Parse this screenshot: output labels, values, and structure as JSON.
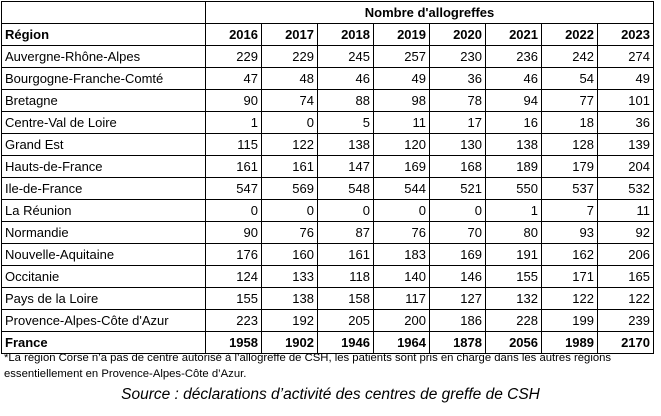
{
  "table": {
    "group_header": "Nombre d'allogreffes",
    "region_label": "Région",
    "years": [
      "2016",
      "2017",
      "2018",
      "2019",
      "2020",
      "2021",
      "2022",
      "2023"
    ],
    "rows": [
      {
        "name": "Auvergne-Rhône-Alpes",
        "values": [
          "229",
          "229",
          "245",
          "257",
          "230",
          "236",
          "242",
          "274"
        ]
      },
      {
        "name": "Bourgogne-Franche-Comté",
        "values": [
          "47",
          "48",
          "46",
          "49",
          "36",
          "46",
          "54",
          "49"
        ]
      },
      {
        "name": "Bretagne",
        "values": [
          "90",
          "74",
          "88",
          "98",
          "78",
          "94",
          "77",
          "101"
        ]
      },
      {
        "name": "Centre-Val de Loire",
        "values": [
          "1",
          "0",
          "5",
          "11",
          "17",
          "16",
          "18",
          "36"
        ]
      },
      {
        "name": "Grand Est",
        "values": [
          "115",
          "122",
          "138",
          "120",
          "130",
          "138",
          "128",
          "139"
        ]
      },
      {
        "name": "Hauts-de-France",
        "values": [
          "161",
          "161",
          "147",
          "169",
          "168",
          "189",
          "179",
          "204"
        ]
      },
      {
        "name": "Ile-de-France",
        "values": [
          "547",
          "569",
          "548",
          "544",
          "521",
          "550",
          "537",
          "532"
        ]
      },
      {
        "name": "La Réunion",
        "values": [
          "0",
          "0",
          "0",
          "0",
          "0",
          "1",
          "7",
          "11"
        ]
      },
      {
        "name": "Normandie",
        "values": [
          "90",
          "76",
          "87",
          "76",
          "70",
          "80",
          "93",
          "92"
        ]
      },
      {
        "name": "Nouvelle-Aquitaine",
        "values": [
          "176",
          "160",
          "161",
          "183",
          "169",
          "191",
          "162",
          "206"
        ]
      },
      {
        "name": "Occitanie",
        "values": [
          "124",
          "133",
          "118",
          "140",
          "146",
          "155",
          "171",
          "165"
        ]
      },
      {
        "name": "Pays de la Loire",
        "values": [
          "155",
          "138",
          "158",
          "117",
          "127",
          "132",
          "122",
          "122"
        ]
      },
      {
        "name": "Provence-Alpes-Côte d'Azur",
        "values": [
          "223",
          "192",
          "205",
          "200",
          "186",
          "228",
          "199",
          "239"
        ]
      }
    ],
    "total": {
      "name": "France",
      "values": [
        "1958",
        "1902",
        "1946",
        "1964",
        "1878",
        "2056",
        "1989",
        "2170"
      ]
    }
  },
  "footnote": "*La région Corse n’a pas de centre autorisé à l’allogreffe de CSH, les patients sont pris en charge dans les autres régions essentiellement en Provence-Alpes-Côte d’Azur.",
  "source": "Source : déclarations d’activité des centres de greffe de CSH"
}
